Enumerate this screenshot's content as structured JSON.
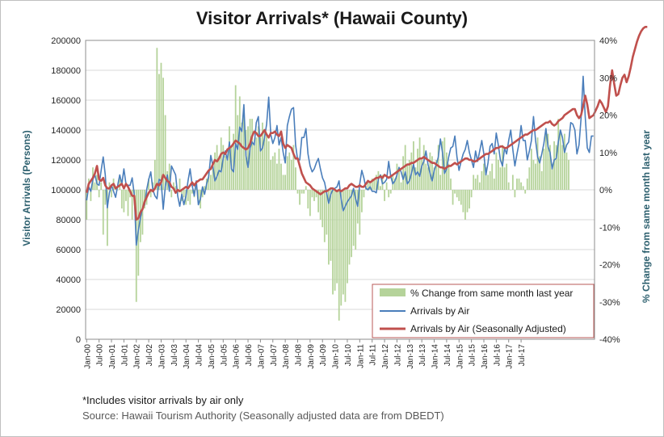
{
  "chart_data": {
    "type": "bar+line",
    "title": "Visitor Arrivals* (Hawaii County)",
    "ylabel": "Visitor Arrivals (Persons)",
    "y2label": "% Change from same month last year",
    "ylim": [
      0,
      200000
    ],
    "y2lim": [
      -40,
      40
    ],
    "yticks": [
      "0",
      "20000",
      "40000",
      "60000",
      "80000",
      "100000",
      "120000",
      "140000",
      "160000",
      "180000",
      "200000"
    ],
    "y2ticks": [
      "-40%",
      "-30%",
      "-20%",
      "-10%",
      "0%",
      "10%",
      "20%",
      "30%",
      "40%"
    ],
    "xticks": [
      "Jan-00",
      "Jul-00",
      "Jan-01",
      "Jul-01",
      "Jan-02",
      "Jul-02",
      "Jan-03",
      "Jul-03",
      "Jan-04",
      "Jul-04",
      "Jan-05",
      "Jul-05",
      "Jan-06",
      "Jul-06",
      "Jan-07",
      "Jul-07",
      "Jan-08",
      "Jul-08",
      "Jan-09",
      "Jul-09",
      "Jan-10",
      "Jul-10",
      "Jan-11",
      "Jul-11",
      "Jan-12",
      "Jul-12",
      "Jan-13",
      "Jul-13",
      "Jan-14",
      "Jul-14",
      "Jan-15",
      "Jul-15",
      "Jan-16",
      "Jul-16",
      "Jan-17",
      "Jul-17"
    ],
    "grid": true,
    "legend_position": "bottom-right",
    "series": [
      {
        "name": "% Change from same month last year",
        "kind": "bar",
        "axis": "right",
        "color": "#b5d39a",
        "values": [
          -8,
          3,
          -3,
          6,
          2,
          4,
          -2,
          2,
          -12,
          -4,
          -15,
          2,
          -2,
          3,
          1,
          0,
          3,
          -5,
          -6,
          -3,
          -7,
          -2,
          -8,
          -1,
          -30,
          -23,
          -14,
          -12,
          -5,
          -4,
          3,
          -2,
          2,
          8,
          38,
          31,
          34,
          30,
          20,
          5,
          7,
          -2,
          2,
          1,
          -1,
          3,
          -3,
          -2,
          -4,
          -3,
          -4,
          -1,
          -2,
          2,
          -3,
          -5,
          -2,
          1,
          3,
          5,
          4,
          7,
          10,
          12,
          9,
          14,
          12,
          9,
          8,
          17,
          12,
          15,
          28,
          20,
          25,
          18,
          22,
          16,
          17,
          19,
          19,
          12,
          14,
          17,
          14,
          18,
          16,
          15,
          13,
          8,
          9,
          10,
          7,
          11,
          7,
          4,
          4,
          9,
          10,
          8,
          12,
          6,
          -1,
          -4,
          -1,
          -1,
          1,
          -5,
          -7,
          -2,
          -3,
          -2,
          -6,
          -8,
          -10,
          -14,
          -12,
          -20,
          -19,
          -28,
          -27,
          -25,
          -35,
          -31,
          -28,
          -30,
          -25,
          -20,
          -18,
          -15,
          -16,
          -9,
          -12,
          -6,
          -2,
          1,
          2,
          2,
          3,
          3,
          4,
          5,
          1,
          4,
          -3,
          2,
          -2,
          -1,
          4,
          3,
          7,
          5,
          2,
          9,
          12,
          7,
          8,
          10,
          13,
          6,
          11,
          14,
          8,
          12,
          7,
          6,
          10,
          9,
          6,
          8,
          12,
          4,
          13,
          14,
          10,
          7,
          3,
          -4,
          -1,
          -2,
          -3,
          -4,
          -6,
          -8,
          -6,
          -5,
          -2,
          4,
          3,
          4,
          2,
          5,
          7,
          6,
          4,
          5,
          7,
          3,
          10,
          8,
          6,
          12,
          6,
          7,
          2,
          0,
          4,
          -2,
          3,
          3,
          2,
          1,
          -1,
          3,
          6,
          11,
          8,
          7,
          14,
          9,
          5,
          11,
          16,
          15,
          12,
          7,
          13,
          12,
          19,
          16,
          12,
          15,
          10,
          8
        ]
      },
      {
        "name": "Arrivals by Air",
        "kind": "line",
        "axis": "left",
        "color": "#4a7ebb",
        "values": [
          93000,
          102000,
          99000,
          107000,
          110000,
          104000,
          103000,
          113000,
          122000,
          110000,
          88000,
          98000,
          103000,
          99000,
          95000,
          103000,
          110000,
          104000,
          114000,
          104000,
          103000,
          103000,
          108000,
          97000,
          63000,
          73000,
          81000,
          88000,
          90000,
          100000,
          107000,
          112000,
          100000,
          96000,
          94000,
          107000,
          106000,
          87000,
          102000,
          110000,
          99000,
          116000,
          113000,
          110000,
          96000,
          89000,
          97000,
          90000,
          96000,
          106000,
          114000,
          103000,
          96000,
          106000,
          90000,
          94000,
          102000,
          97000,
          104000,
          109000,
          123000,
          116000,
          106000,
          109000,
          113000,
          112000,
          121000,
          126000,
          120000,
          132000,
          114000,
          112000,
          131000,
          127000,
          142000,
          139000,
          157000,
          123000,
          115000,
          128000,
          132000,
          130000,
          145000,
          149000,
          126000,
          128000,
          135000,
          144000,
          162000,
          137000,
          131000,
          135000,
          143000,
          130000,
          135000,
          125000,
          118000,
          143000,
          149000,
          154000,
          155000,
          130000,
          120000,
          120000,
          135000,
          135000,
          141000,
          124000,
          116000,
          112000,
          114000,
          118000,
          121000,
          114000,
          108000,
          105000,
          98000,
          91000,
          97000,
          100000,
          101000,
          102000,
          106000,
          94000,
          86000,
          89000,
          92000,
          94000,
          96000,
          101000,
          94000,
          89000,
          104000,
          113000,
          108000,
          101000,
          100000,
          102000,
          99000,
          99000,
          98000,
          107000,
          110000,
          104000,
          105000,
          107000,
          119000,
          109000,
          104000,
          106000,
          110000,
          115000,
          112000,
          107000,
          112000,
          104000,
          106000,
          111000,
          117000,
          110000,
          112000,
          109000,
          116000,
          119000,
          126000,
          117000,
          111000,
          106000,
          113000,
          117000,
          122000,
          134000,
          125000,
          111000,
          114000,
          122000,
          128000,
          129000,
          136000,
          122000,
          113000,
          119000,
          124000,
          127000,
          133000,
          125000,
          120000,
          115000,
          126000,
          119000,
          126000,
          133000,
          124000,
          110000,
          118000,
          129000,
          131000,
          124000,
          138000,
          130000,
          120000,
          116000,
          128000,
          124000,
          133000,
          140000,
          127000,
          116000,
          124000,
          131000,
          143000,
          133000,
          133000,
          120000,
          126000,
          133000,
          149000,
          133000,
          122000,
          118000,
          124000,
          131000,
          141000,
          129000,
          125000,
          114000,
          120000,
          121000,
          132000,
          140000,
          135000,
          125000,
          130000,
          132000,
          145000,
          144000,
          140000,
          124000,
          130000,
          148000,
          176000,
          149000,
          128000,
          125000,
          136000,
          136000
        ]
      },
      {
        "name": "Arrivals by Air (Seasonally Adjusted)",
        "kind": "line",
        "axis": "left",
        "color": "#c0504d",
        "values": [
          98000,
          104000,
          106000,
          108000,
          111000,
          116000,
          107000,
          106000,
          108000,
          103000,
          101000,
          101000,
          103000,
          104000,
          101000,
          102000,
          103000,
          104000,
          101000,
          104000,
          102000,
          99000,
          96000,
          96000,
          80000,
          81000,
          85000,
          87000,
          92000,
          95000,
          98000,
          100000,
          99000,
          101000,
          104000,
          103000,
          105000,
          110000,
          108000,
          106000,
          105000,
          102000,
          101000,
          98000,
          100000,
          99000,
          100000,
          101000,
          102000,
          101000,
          103000,
          105000,
          103000,
          105000,
          106000,
          107000,
          107000,
          109000,
          111000,
          113000,
          114000,
          117000,
          120000,
          119000,
          121000,
          124000,
          125000,
          124000,
          127000,
          128000,
          129000,
          131000,
          133000,
          132000,
          131000,
          129000,
          128000,
          127000,
          128000,
          131000,
          136000,
          139000,
          138000,
          136000,
          136000,
          138000,
          140000,
          137000,
          135000,
          138000,
          138000,
          139000,
          137000,
          136000,
          139000,
          131000,
          128000,
          130000,
          129000,
          128000,
          124000,
          121000,
          121000,
          116000,
          111000,
          108000,
          105000,
          104000,
          103000,
          101000,
          100000,
          99000,
          98000,
          97000,
          98000,
          99000,
          99000,
          100000,
          101000,
          101000,
          100000,
          99000,
          100000,
          99000,
          100000,
          101000,
          101000,
          103000,
          104000,
          103000,
          102000,
          102000,
          103000,
          102000,
          102000,
          104000,
          106000,
          105000,
          106000,
          107000,
          108000,
          108000,
          109000,
          108000,
          110000,
          109000,
          108000,
          109000,
          110000,
          111000,
          112000,
          113000,
          114000,
          115000,
          116000,
          117000,
          117000,
          118000,
          118000,
          119000,
          120000,
          121000,
          121000,
          122000,
          121000,
          120000,
          119000,
          118000,
          118000,
          117000,
          116000,
          115000,
          115000,
          114000,
          115000,
          116000,
          116000,
          117000,
          118000,
          117000,
          118000,
          119000,
          120000,
          121000,
          121000,
          120000,
          120000,
          119000,
          119000,
          120000,
          121000,
          122000,
          123000,
          124000,
          124000,
          125000,
          126000,
          127000,
          128000,
          128000,
          129000,
          129000,
          128000,
          128000,
          129000,
          130000,
          131000,
          132000,
          133000,
          134000,
          135000,
          136000,
          137000,
          137000,
          138000,
          139000,
          140000,
          140000,
          141000,
          142000,
          143000,
          144000,
          145000,
          145000,
          146000,
          144000,
          143000,
          144000,
          146000,
          147000,
          148000,
          150000,
          151000,
          152000,
          153000,
          154000,
          154000,
          150000,
          148000,
          150000,
          156000,
          163000,
          157000,
          148000,
          149000,
          150000,
          153000,
          156000,
          160000,
          158000,
          155000,
          152000,
          156000,
          170000,
          180000,
          171000,
          163000,
          164000,
          170000,
          175000,
          177000,
          172000,
          176000,
          182000,
          189000,
          194000,
          199000,
          203000,
          206000,
          208000,
          209000,
          209000
        ]
      }
    ]
  },
  "footnote": "*Includes visitor arrivals by air only",
  "source": "Source: Hawaii Tourism Authority  (Seasonally adjusted data are from DBEDT)",
  "colors": {
    "axis_title": "#2c5f6e",
    "grid": "#d9d9d9",
    "plot_border": "#8c8c8c",
    "legend_border": "#b85a57"
  }
}
